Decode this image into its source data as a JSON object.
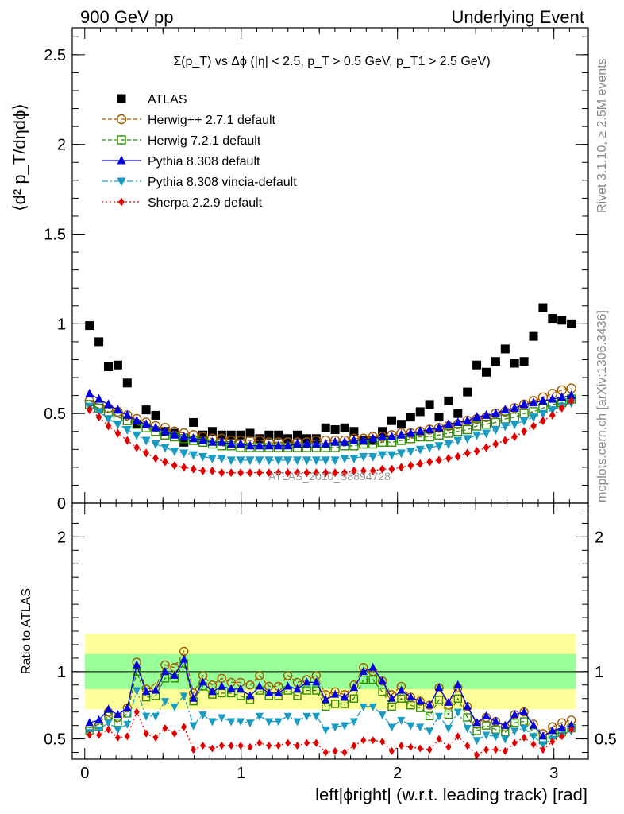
{
  "header": {
    "left": "900 GeV pp",
    "right": "Underlying Event"
  },
  "plot_title": "Σ(p_T) vs Δϕ (|η| < 2.5, p_T > 0.5 GeV, p_T1 > 2.5 GeV)",
  "side_labels": {
    "rivet": "Rivet 3.1.10, ≥ 2.5M events",
    "mcplots": "mcplots.cern.ch [arXiv:1306.3436]"
  },
  "watermark": "ATLAS_2010_S8894728",
  "colors": {
    "data": "#000000",
    "herwigpp": "#a25a00",
    "herwig7": "#2f8a00",
    "pythia": "#0000e0",
    "vincia": "#1a9cc2",
    "sherpa": "#e00000",
    "band_outer": "#ffff99",
    "band_inner": "#99ff99"
  },
  "chart_data": [
    {
      "type": "scatter",
      "panel": "main",
      "ylabel": "⟨d² p_T/dηdϕ⟩",
      "xlim": [
        -0.08,
        3.22
      ],
      "ylim": [
        0,
        2.65
      ],
      "yticks": [
        "0",
        "0.5",
        "1",
        "1.5",
        "2",
        "2.5"
      ],
      "legend_position": "top-left",
      "series": [
        {
          "name": "ATLAS",
          "marker": "square",
          "values": [
            0.99,
            0.9,
            0.76,
            0.77,
            0.67,
            0.44,
            0.52,
            0.49,
            0.4,
            0.39,
            0.34,
            0.45,
            0.38,
            0.4,
            0.38,
            0.38,
            0.38,
            0.39,
            0.36,
            0.38,
            0.38,
            0.36,
            0.38,
            0.36,
            0.36,
            0.42,
            0.41,
            0.42,
            0.4,
            0.35,
            0.35,
            0.4,
            0.46,
            0.44,
            0.48,
            0.51,
            0.55,
            0.48,
            0.57,
            0.5,
            0.62,
            0.77,
            0.73,
            0.79,
            0.86,
            0.78,
            0.79,
            0.93,
            1.09,
            1.03,
            1.02,
            1.0
          ]
        },
        {
          "name": "Herwig++ 2.7.1 default",
          "marker": "circle-open",
          "line": "dashed",
          "values": [
            0.57,
            0.55,
            0.53,
            0.51,
            0.49,
            0.47,
            0.45,
            0.43,
            0.42,
            0.4,
            0.39,
            0.38,
            0.37,
            0.36,
            0.36,
            0.35,
            0.35,
            0.35,
            0.35,
            0.34,
            0.34,
            0.34,
            0.34,
            0.34,
            0.35,
            0.35,
            0.35,
            0.35,
            0.36,
            0.36,
            0.37,
            0.37,
            0.38,
            0.39,
            0.39,
            0.4,
            0.41,
            0.42,
            0.43,
            0.44,
            0.46,
            0.47,
            0.48,
            0.5,
            0.51,
            0.53,
            0.55,
            0.57,
            0.59,
            0.61,
            0.63,
            0.64
          ]
        },
        {
          "name": "Herwig 7.2.1 default",
          "marker": "square-open",
          "line": "dashed",
          "values": [
            0.55,
            0.53,
            0.51,
            0.48,
            0.46,
            0.44,
            0.42,
            0.4,
            0.38,
            0.37,
            0.36,
            0.35,
            0.34,
            0.33,
            0.32,
            0.32,
            0.31,
            0.31,
            0.31,
            0.31,
            0.31,
            0.31,
            0.31,
            0.31,
            0.31,
            0.31,
            0.31,
            0.32,
            0.32,
            0.33,
            0.33,
            0.34,
            0.34,
            0.35,
            0.36,
            0.37,
            0.37,
            0.38,
            0.39,
            0.4,
            0.41,
            0.43,
            0.44,
            0.45,
            0.47,
            0.48,
            0.5,
            0.51,
            0.53,
            0.55,
            0.56,
            0.58
          ]
        },
        {
          "name": "Pythia 8.308 default",
          "marker": "triangle-up",
          "line": "solid",
          "values": [
            0.61,
            0.58,
            0.55,
            0.52,
            0.49,
            0.46,
            0.44,
            0.42,
            0.4,
            0.38,
            0.37,
            0.36,
            0.35,
            0.34,
            0.34,
            0.33,
            0.33,
            0.32,
            0.32,
            0.32,
            0.32,
            0.32,
            0.33,
            0.33,
            0.33,
            0.33,
            0.34,
            0.34,
            0.35,
            0.35,
            0.36,
            0.37,
            0.37,
            0.38,
            0.39,
            0.4,
            0.41,
            0.42,
            0.44,
            0.45,
            0.46,
            0.48,
            0.49,
            0.5,
            0.52,
            0.53,
            0.55,
            0.56,
            0.57,
            0.58,
            0.59,
            0.6
          ]
        },
        {
          "name": "Pythia 8.308 vincia-default",
          "marker": "triangle-down",
          "line": "dashdot",
          "values": [
            0.54,
            0.51,
            0.47,
            0.44,
            0.41,
            0.38,
            0.35,
            0.33,
            0.31,
            0.29,
            0.28,
            0.27,
            0.26,
            0.25,
            0.25,
            0.24,
            0.24,
            0.24,
            0.24,
            0.24,
            0.24,
            0.24,
            0.24,
            0.24,
            0.24,
            0.24,
            0.24,
            0.25,
            0.25,
            0.26,
            0.26,
            0.27,
            0.27,
            0.28,
            0.29,
            0.3,
            0.31,
            0.32,
            0.33,
            0.35,
            0.36,
            0.38,
            0.39,
            0.41,
            0.43,
            0.44,
            0.46,
            0.48,
            0.5,
            0.52,
            0.54,
            0.56
          ]
        },
        {
          "name": "Sherpa 2.2.9 default",
          "marker": "diamond",
          "line": "dotted",
          "values": [
            0.52,
            0.48,
            0.43,
            0.39,
            0.35,
            0.31,
            0.28,
            0.25,
            0.23,
            0.21,
            0.2,
            0.19,
            0.18,
            0.18,
            0.17,
            0.17,
            0.17,
            0.17,
            0.17,
            0.17,
            0.17,
            0.17,
            0.17,
            0.17,
            0.17,
            0.17,
            0.17,
            0.17,
            0.18,
            0.18,
            0.18,
            0.19,
            0.19,
            0.2,
            0.21,
            0.22,
            0.23,
            0.24,
            0.25,
            0.26,
            0.28,
            0.29,
            0.31,
            0.33,
            0.35,
            0.37,
            0.4,
            0.43,
            0.46,
            0.49,
            0.53,
            0.57
          ]
        }
      ]
    },
    {
      "type": "scatter",
      "panel": "ratio",
      "xlabel": "left|ϕright| (w.r.t. leading track) [rad]",
      "ylabel": "Ratio to ATLAS",
      "xlim": [
        -0.08,
        3.22
      ],
      "ylim": [
        0.35,
        2.25
      ],
      "yticks": [
        "0.5",
        "1",
        "2"
      ],
      "xticks": [
        "0",
        "1",
        "2",
        "3"
      ],
      "band_outer": [
        0.72,
        1.28
      ],
      "band_inner": [
        0.87,
        1.13
      ],
      "series": [
        {
          "name": "Herwig++ 2.7.1 default",
          "values": [
            0.58,
            0.61,
            0.7,
            0.66,
            0.73,
            1.07,
            0.87,
            0.88,
            1.05,
            1.03,
            1.15,
            0.84,
            0.97,
            0.9,
            0.95,
            0.92,
            0.92,
            0.9,
            0.97,
            0.89,
            0.89,
            0.97,
            0.92,
            0.94,
            0.97,
            0.83,
            0.85,
            0.83,
            0.9,
            1.03,
            1.0,
            0.93,
            0.83,
            0.89,
            0.81,
            0.78,
            0.75,
            0.88,
            0.75,
            0.88,
            0.74,
            0.61,
            0.66,
            0.63,
            0.59,
            0.68,
            0.7,
            0.61,
            0.54,
            0.59,
            0.62,
            0.64
          ]
        },
        {
          "name": "Herwig 7.2.1 default",
          "values": [
            0.56,
            0.59,
            0.67,
            0.62,
            0.69,
            1.0,
            0.81,
            0.82,
            0.95,
            0.95,
            1.06,
            0.78,
            0.89,
            0.83,
            0.84,
            0.84,
            0.82,
            0.79,
            0.86,
            0.82,
            0.82,
            0.86,
            0.82,
            0.86,
            0.86,
            0.74,
            0.76,
            0.76,
            0.8,
            0.94,
            0.94,
            0.85,
            0.74,
            0.8,
            0.75,
            0.73,
            0.67,
            0.79,
            0.68,
            0.8,
            0.66,
            0.56,
            0.6,
            0.57,
            0.55,
            0.62,
            0.63,
            0.55,
            0.49,
            0.53,
            0.55,
            0.58
          ]
        },
        {
          "name": "Pythia 8.308 default",
          "values": [
            0.62,
            0.64,
            0.72,
            0.68,
            0.73,
            1.05,
            0.85,
            0.86,
            1.0,
            0.97,
            1.09,
            0.8,
            0.92,
            0.85,
            0.89,
            0.87,
            0.87,
            0.82,
            0.89,
            0.84,
            0.84,
            0.89,
            0.87,
            0.92,
            0.92,
            0.79,
            0.83,
            0.81,
            0.88,
            1.0,
            1.03,
            0.93,
            0.8,
            0.86,
            0.81,
            0.78,
            0.75,
            0.88,
            0.77,
            0.9,
            0.74,
            0.62,
            0.67,
            0.63,
            0.6,
            0.68,
            0.7,
            0.6,
            0.52,
            0.56,
            0.58,
            0.6
          ]
        },
        {
          "name": "Pythia 8.308 vincia-default",
          "values": [
            0.55,
            0.57,
            0.62,
            0.57,
            0.61,
            0.86,
            0.67,
            0.67,
            0.78,
            0.74,
            0.82,
            0.6,
            0.68,
            0.63,
            0.66,
            0.63,
            0.63,
            0.62,
            0.67,
            0.63,
            0.63,
            0.67,
            0.63,
            0.67,
            0.67,
            0.57,
            0.59,
            0.6,
            0.63,
            0.74,
            0.74,
            0.68,
            0.59,
            0.64,
            0.6,
            0.59,
            0.56,
            0.67,
            0.58,
            0.7,
            0.58,
            0.49,
            0.53,
            0.52,
            0.5,
            0.56,
            0.58,
            0.52,
            0.46,
            0.5,
            0.53,
            0.56
          ]
        },
        {
          "name": "Sherpa 2.2.9 default",
          "values": [
            0.53,
            0.53,
            0.57,
            0.51,
            0.52,
            0.7,
            0.54,
            0.51,
            0.58,
            0.54,
            0.59,
            0.42,
            0.45,
            0.43,
            0.45,
            0.45,
            0.45,
            0.44,
            0.47,
            0.45,
            0.45,
            0.47,
            0.45,
            0.47,
            0.47,
            0.4,
            0.41,
            0.4,
            0.45,
            0.49,
            0.49,
            0.48,
            0.41,
            0.45,
            0.44,
            0.43,
            0.42,
            0.5,
            0.44,
            0.52,
            0.45,
            0.38,
            0.42,
            0.42,
            0.41,
            0.47,
            0.51,
            0.46,
            0.42,
            0.48,
            0.52,
            0.57
          ]
        }
      ]
    }
  ]
}
